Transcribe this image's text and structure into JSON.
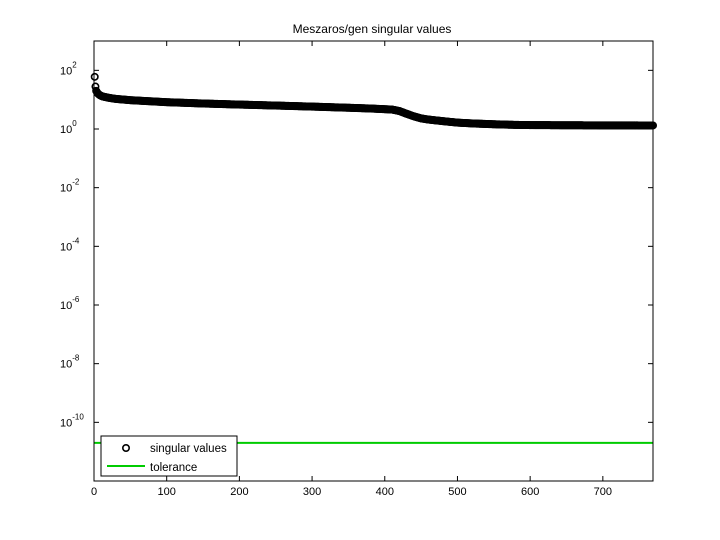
{
  "chart_data": {
    "type": "scatter",
    "title": "Meszaros/gen singular values",
    "xlabel": "",
    "ylabel": "",
    "y_scale": "log",
    "xlim": [
      0,
      769
    ],
    "ylim": [
      1e-12,
      1000
    ],
    "x_ticks": [
      "0",
      "100",
      "200",
      "300",
      "400",
      "500",
      "600",
      "700"
    ],
    "y_ticks": [
      {
        "base": "10",
        "exp": "2"
      },
      {
        "base": "10",
        "exp": "0"
      },
      {
        "base": "10",
        "exp": "-2"
      },
      {
        "base": "10",
        "exp": "-4"
      },
      {
        "base": "10",
        "exp": "-6"
      },
      {
        "base": "10",
        "exp": "-8"
      },
      {
        "base": "10",
        "exp": "-10"
      }
    ],
    "grid": false,
    "legend_position": "bottom-left",
    "series": [
      {
        "name": "singular values",
        "marker": "circle",
        "color": "#000000",
        "n_points": 769,
        "profile_x": [
          1,
          2,
          3,
          5,
          8,
          12,
          20,
          30,
          50,
          100,
          150,
          200,
          250,
          300,
          350,
          380,
          410,
          420,
          430,
          440,
          450,
          460,
          480,
          500,
          520,
          550,
          580,
          600,
          650,
          700,
          769
        ],
        "profile_y": [
          60,
          28,
          20,
          16.5,
          14.2,
          12.8,
          11.6,
          10.6,
          9.6,
          8.2,
          7.4,
          6.8,
          6.3,
          5.8,
          5.3,
          5.0,
          4.6,
          4.1,
          3.3,
          2.7,
          2.3,
          2.1,
          1.85,
          1.65,
          1.55,
          1.45,
          1.38,
          1.36,
          1.34,
          1.33,
          1.32
        ]
      },
      {
        "name": "tolerance",
        "marker": "line",
        "color": "#00cc00",
        "value": 2e-11
      }
    ]
  }
}
